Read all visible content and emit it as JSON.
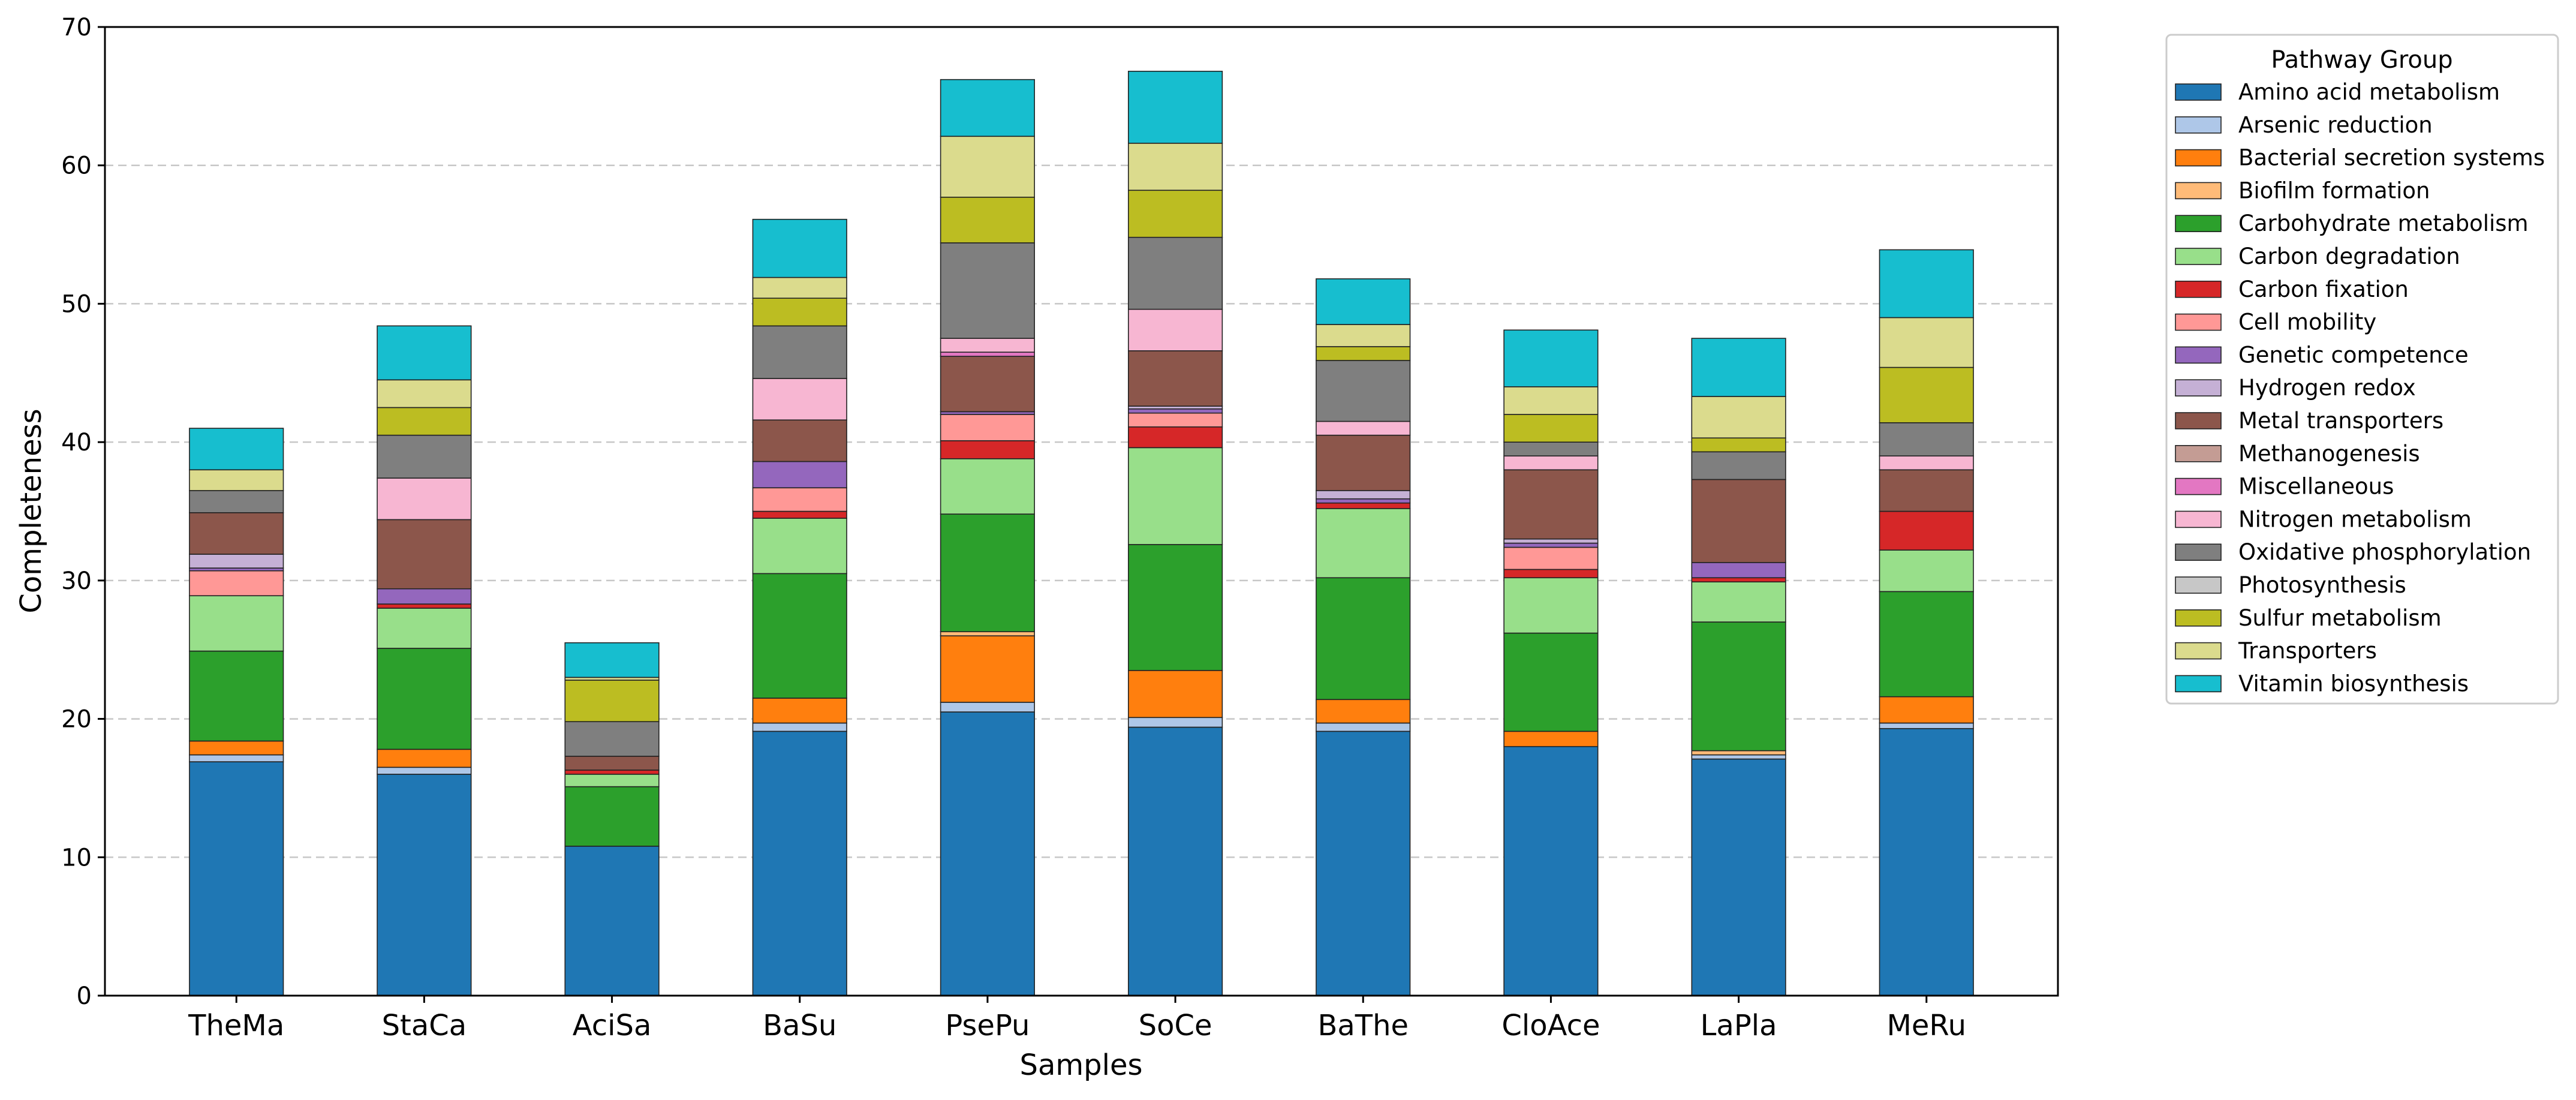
{
  "chart_data": {
    "type": "bar",
    "stacked": true,
    "title": "",
    "xlabel": "Samples",
    "ylabel": "Completeness",
    "ylim": [
      0,
      70
    ],
    "yticks": [
      0,
      10,
      20,
      30,
      40,
      50,
      60,
      70
    ],
    "grid": "horizontal dashed",
    "legend_title": "Pathway Group",
    "legend_position": "outside-right-top",
    "categories": [
      "TheMa",
      "StaCa",
      "AciSa",
      "BaSu",
      "PsePu",
      "SoCe",
      "BaThe",
      "CloAce",
      "LaPla",
      "MeRu"
    ],
    "series": [
      {
        "name": "Amino acid metabolism",
        "color": "#1f77b4",
        "values": [
          16.9,
          16.0,
          10.8,
          19.1,
          20.5,
          19.4,
          19.1,
          18.0,
          17.1,
          19.3
        ]
      },
      {
        "name": "Arsenic reduction",
        "color": "#aec7e8",
        "values": [
          0.5,
          0.5,
          0.0,
          0.6,
          0.7,
          0.7,
          0.6,
          0.0,
          0.3,
          0.4
        ]
      },
      {
        "name": "Bacterial secretion systems",
        "color": "#ff7f0e",
        "values": [
          1.0,
          1.3,
          0.0,
          1.8,
          4.8,
          3.4,
          1.7,
          1.1,
          0.0,
          1.9
        ]
      },
      {
        "name": "Biofilm formation",
        "color": "#ffbb78",
        "values": [
          0.0,
          0.0,
          0.0,
          0.0,
          0.3,
          0.0,
          0.0,
          0.0,
          0.3,
          0.0
        ]
      },
      {
        "name": "Carbohydrate metabolism",
        "color": "#2ca02c",
        "values": [
          6.5,
          7.3,
          4.3,
          9.0,
          8.5,
          9.1,
          8.8,
          7.1,
          9.3,
          7.6
        ]
      },
      {
        "name": "Carbon degradation",
        "color": "#98df8a",
        "values": [
          4.0,
          2.9,
          0.9,
          4.0,
          4.0,
          7.0,
          5.0,
          4.0,
          2.9,
          3.0
        ]
      },
      {
        "name": "Carbon fixation",
        "color": "#d62728",
        "values": [
          0.0,
          0.3,
          0.3,
          0.5,
          1.3,
          1.5,
          0.4,
          0.6,
          0.3,
          2.8
        ]
      },
      {
        "name": "Cell mobility",
        "color": "#ff9896",
        "values": [
          1.8,
          0.0,
          0.0,
          1.7,
          1.9,
          1.0,
          0.0,
          1.6,
          0.0,
          0.0
        ]
      },
      {
        "name": "Genetic competence",
        "color": "#9467bd",
        "values": [
          0.2,
          1.1,
          0.0,
          1.9,
          0.2,
          0.3,
          0.3,
          0.3,
          1.1,
          0.0
        ]
      },
      {
        "name": "Hydrogen redox",
        "color": "#c5b0d5",
        "values": [
          1.0,
          0.0,
          0.0,
          0.0,
          0.0,
          0.2,
          0.6,
          0.3,
          0.0,
          0.0
        ]
      },
      {
        "name": "Metal transporters",
        "color": "#8c564b",
        "values": [
          3.0,
          5.0,
          1.0,
          3.0,
          4.0,
          4.0,
          4.0,
          5.0,
          6.0,
          3.0
        ]
      },
      {
        "name": "Methanogenesis",
        "color": "#c49c94",
        "values": [
          0.0,
          0.0,
          0.0,
          0.0,
          0.0,
          0.0,
          0.0,
          0.0,
          0.0,
          0.0
        ]
      },
      {
        "name": "Miscellaneous",
        "color": "#e377c2",
        "values": [
          0.0,
          0.0,
          0.0,
          0.0,
          0.3,
          0.0,
          0.0,
          0.0,
          0.0,
          0.0
        ]
      },
      {
        "name": "Nitrogen metabolism",
        "color": "#f7b6d2",
        "values": [
          0.0,
          3.0,
          0.0,
          3.0,
          1.0,
          3.0,
          1.0,
          1.0,
          0.0,
          1.0
        ]
      },
      {
        "name": "Oxidative phosphorylation",
        "color": "#7f7f7f",
        "values": [
          1.6,
          3.1,
          2.5,
          3.8,
          6.9,
          5.2,
          4.4,
          1.0,
          2.0,
          2.4
        ]
      },
      {
        "name": "Photosynthesis",
        "color": "#c7c7c7",
        "values": [
          0.0,
          0.0,
          0.0,
          0.0,
          0.0,
          0.0,
          0.0,
          0.0,
          0.0,
          0.0
        ]
      },
      {
        "name": "Sulfur metabolism",
        "color": "#bcbd22",
        "values": [
          0.0,
          2.0,
          3.0,
          2.0,
          3.3,
          3.4,
          1.0,
          2.0,
          1.0,
          4.0
        ]
      },
      {
        "name": "Transporters",
        "color": "#dbdb8d",
        "values": [
          1.5,
          2.0,
          0.2,
          1.5,
          4.4,
          3.4,
          1.6,
          2.0,
          3.0,
          3.6
        ]
      },
      {
        "name": "Vitamin biosynthesis",
        "color": "#17becf",
        "values": [
          3.0,
          3.9,
          2.5,
          4.2,
          4.1,
          5.2,
          3.3,
          4.1,
          4.2,
          4.9
        ]
      }
    ]
  }
}
